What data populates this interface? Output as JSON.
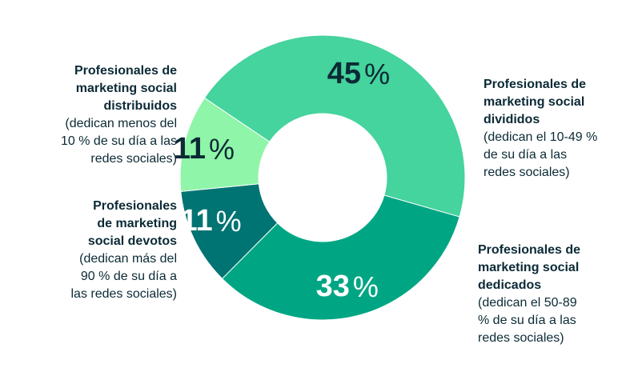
{
  "chart_data": {
    "type": "pie",
    "donut": true,
    "title": "",
    "slices": [
      {
        "label": "Profesionales de\nmarketing social\ndivididos",
        "description": "(dedican el 10-49 %\nde su día a las\nredes sociales)",
        "value": 45,
        "value_label": "45",
        "unit": "%",
        "color": "#45d39e",
        "text_color": "#0b2a35"
      },
      {
        "label": "Profesionales de\nmarketing social\ndedicados",
        "description": "(dedican el 50-89\n% de su día a las\nredes sociales)",
        "value": 33,
        "value_label": "33",
        "unit": "%",
        "color": "#00a683",
        "text_color": "#ffffff"
      },
      {
        "label": "Profesionales\nde marketing\nsocial devotos",
        "description": "(dedican más del\n90 % de su día a\nlas redes sociales)",
        "value": 11,
        "value_label": "11",
        "unit": "%",
        "color": "#007373",
        "text_color": "#ffffff"
      },
      {
        "label": "Profesionales de\nmarketing social\ndistribuidos",
        "description": "(dedican menos del\n10 % de su día a las\nredes sociales)",
        "value": 11,
        "value_label": "11",
        "unit": "%",
        "color": "#8ff5a8",
        "text_color": "#0b2a35"
      }
    ]
  }
}
